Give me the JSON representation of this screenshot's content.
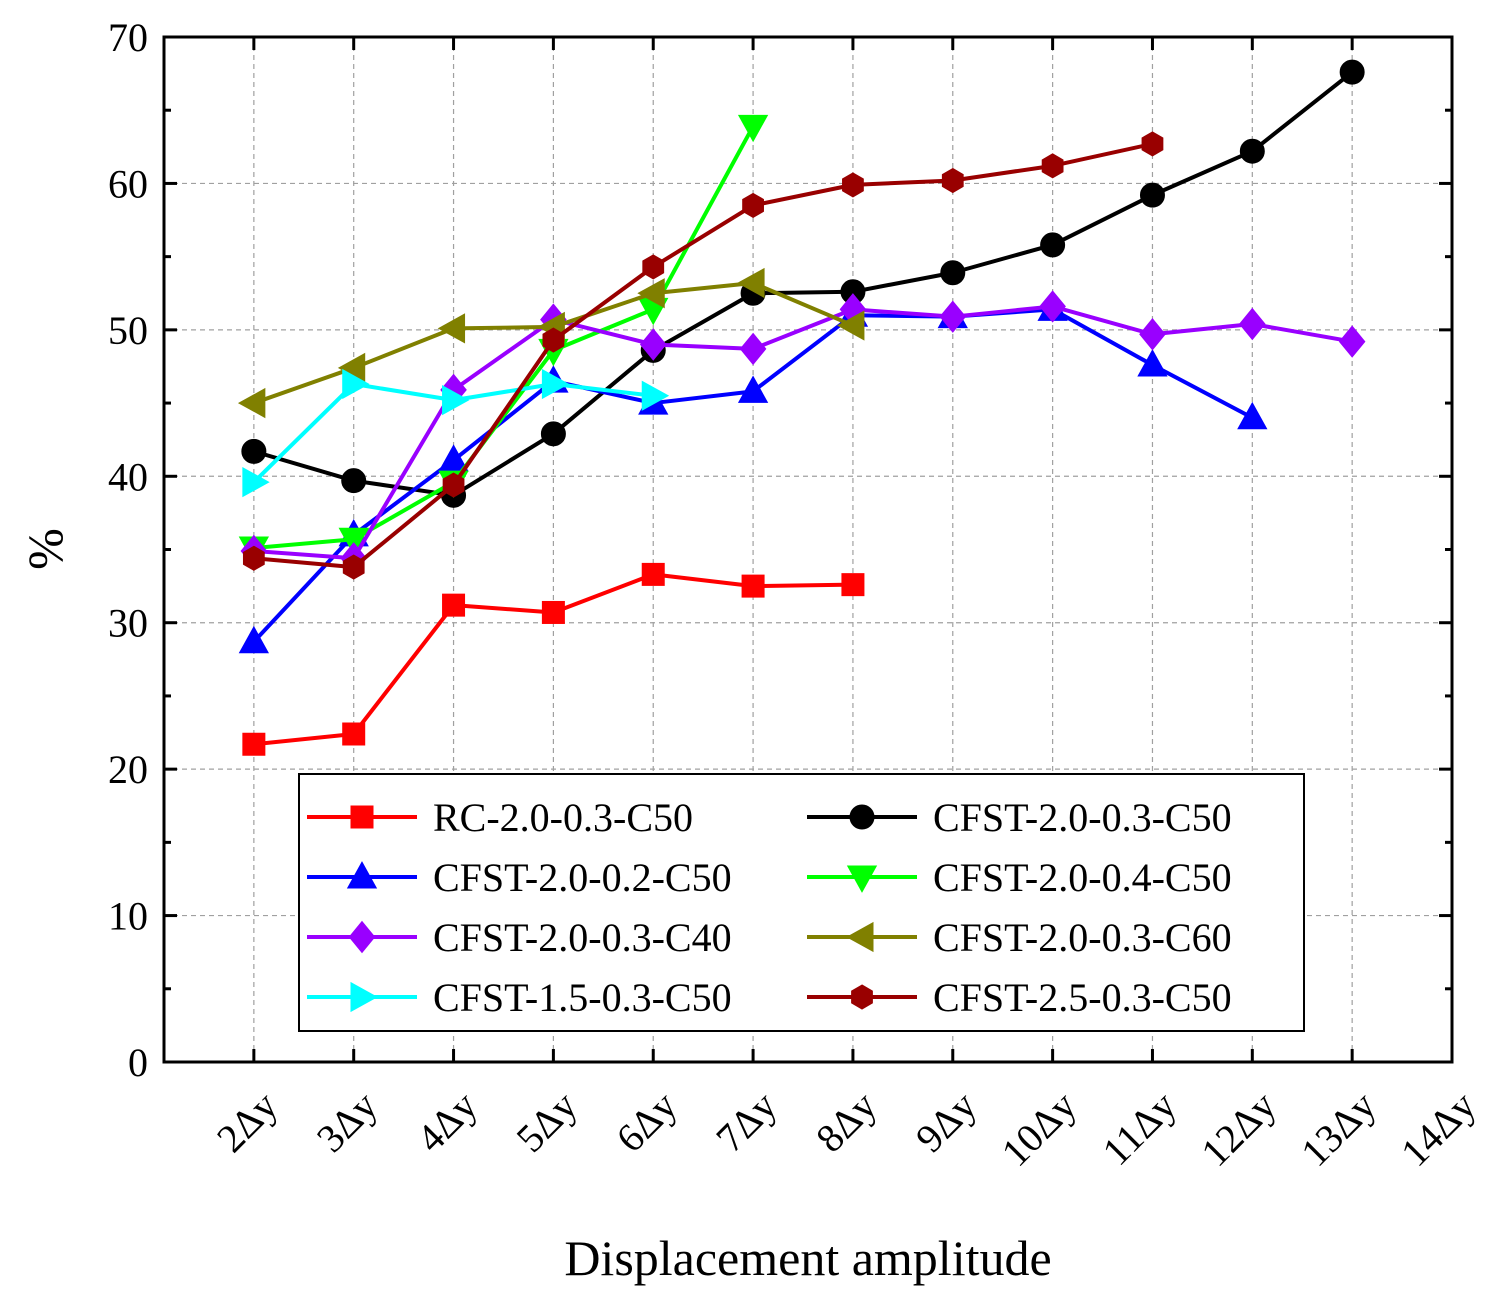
{
  "chart_data": {
    "type": "line",
    "title": "",
    "xlabel": "Displacement amplitude",
    "ylabel": "%",
    "categories": [
      "2Δy",
      "3Δy",
      "4Δy",
      "5Δy",
      "6Δy",
      "7Δy",
      "8Δy",
      "9Δy",
      "10Δy",
      "11Δy",
      "12Δy",
      "13Δy",
      "14Δy"
    ],
    "xlim": [
      1.1,
      14.0
    ],
    "ylim": [
      0,
      70
    ],
    "yticks": [
      0,
      10,
      20,
      30,
      40,
      50,
      60,
      70
    ],
    "grid": true,
    "legend_position": "bottom-center",
    "series": [
      {
        "name": "RC-2.0-0.3-C50",
        "color": "#ff0000",
        "marker": "square",
        "x": [
          2,
          3,
          4,
          5,
          6,
          7,
          8
        ],
        "values": [
          21.7,
          22.4,
          31.2,
          30.7,
          33.3,
          32.5,
          32.6
        ]
      },
      {
        "name": "CFST-2.0-0.3-C50",
        "color": "#000000",
        "marker": "circle",
        "x": [
          2,
          3,
          4,
          5,
          6,
          7,
          8,
          9,
          10,
          11,
          12,
          13
        ],
        "values": [
          41.7,
          39.7,
          38.7,
          42.9,
          48.6,
          52.5,
          52.6,
          53.9,
          55.8,
          59.2,
          62.2,
          67.6
        ]
      },
      {
        "name": "CFST-2.0-0.2-C50",
        "color": "#0000ff",
        "marker": "triangle-up",
        "x": [
          2,
          3,
          4,
          5,
          6,
          7,
          8,
          9,
          10,
          11,
          12
        ],
        "values": [
          28.7,
          36.0,
          41.1,
          46.5,
          45.0,
          45.8,
          51.0,
          50.9,
          51.4,
          47.6,
          44.0
        ]
      },
      {
        "name": "CFST-2.0-0.4-C50",
        "color": "#00ff00",
        "marker": "triangle-down",
        "x": [
          2,
          3,
          4,
          5,
          6,
          7
        ],
        "values": [
          35.1,
          35.7,
          39.6,
          48.6,
          51.4,
          63.9
        ]
      },
      {
        "name": "CFST-2.0-0.3-C40",
        "color": "#9900ff",
        "marker": "diamond",
        "x": [
          2,
          3,
          4,
          5,
          6,
          7,
          8,
          9,
          10,
          11,
          12,
          13
        ],
        "values": [
          34.9,
          34.4,
          45.9,
          50.7,
          49.0,
          48.7,
          51.4,
          50.9,
          51.6,
          49.7,
          50.4,
          49.2
        ]
      },
      {
        "name": "CFST-2.0-0.3-C60",
        "color": "#808000",
        "marker": "triangle-left",
        "x": [
          2,
          3,
          4,
          5,
          6,
          7,
          8
        ],
        "values": [
          45.0,
          47.4,
          50.1,
          50.2,
          52.5,
          53.2,
          50.3
        ]
      },
      {
        "name": "CFST-1.5-0.3-C50",
        "color": "#00ffff",
        "marker": "triangle-right",
        "x": [
          2,
          3,
          4,
          5,
          6
        ],
        "values": [
          39.6,
          46.3,
          45.2,
          46.3,
          45.5
        ]
      },
      {
        "name": "CFST-2.5-0.3-C50",
        "color": "#990000",
        "marker": "hexagon",
        "x": [
          2,
          3,
          4,
          5,
          6,
          7,
          8,
          9,
          10,
          11
        ],
        "values": [
          34.4,
          33.8,
          39.4,
          49.3,
          54.3,
          58.5,
          59.9,
          60.2,
          61.2,
          62.7
        ]
      }
    ]
  }
}
